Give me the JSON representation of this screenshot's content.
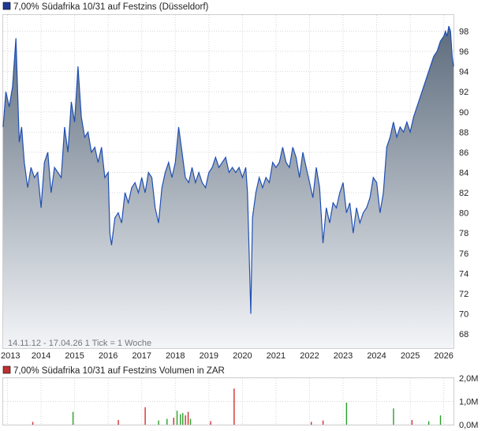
{
  "chart_data": [
    {
      "type": "area",
      "title": "7,00% Südafrika 10/31 auf Festzins (Düsseldorf)",
      "series_color": "#1f4fb4",
      "legend_swatch_color": "#1f3a93",
      "caption": "14.11.12 - 17.04.26   1 Tick = 1 Woche",
      "xlim": [
        2012.87,
        2026.29
      ],
      "ylim": [
        66.6,
        99.6
      ],
      "x_ticks": [
        2013,
        2014,
        2015,
        2016,
        2017,
        2018,
        2019,
        2020,
        2021,
        2022,
        2023,
        2024,
        2025,
        2026
      ],
      "x_tick_labels": [
        "2013",
        "2014",
        "2015",
        "2016",
        "2017",
        "2018",
        "2019",
        "2020",
        "2021",
        "2022",
        "2023",
        "2024",
        "2025",
        "2026"
      ],
      "y_ticks": [
        68,
        70,
        72,
        74,
        76,
        78,
        80,
        82,
        84,
        86,
        88,
        90,
        92,
        94,
        96,
        98
      ],
      "y_tick_labels": [
        "68",
        "70",
        "72",
        "74",
        "76",
        "78",
        "80",
        "82",
        "84",
        "86",
        "88",
        "90",
        "92",
        "94",
        "96",
        "98"
      ],
      "x": [
        2012.87,
        2012.95,
        2013.05,
        2013.15,
        2013.25,
        2013.35,
        2013.42,
        2013.5,
        2013.6,
        2013.7,
        2013.8,
        2013.9,
        2014.0,
        2014.1,
        2014.2,
        2014.3,
        2014.4,
        2014.5,
        2014.6,
        2014.7,
        2014.8,
        2014.9,
        2015.0,
        2015.1,
        2015.2,
        2015.3,
        2015.4,
        2015.5,
        2015.6,
        2015.7,
        2015.8,
        2015.9,
        2016.0,
        2016.05,
        2016.1,
        2016.2,
        2016.3,
        2016.4,
        2016.5,
        2016.6,
        2016.7,
        2016.8,
        2016.9,
        2017.0,
        2017.1,
        2017.2,
        2017.3,
        2017.4,
        2017.5,
        2017.6,
        2017.7,
        2017.8,
        2017.9,
        2018.0,
        2018.1,
        2018.2,
        2018.3,
        2018.4,
        2018.5,
        2018.6,
        2018.7,
        2018.8,
        2018.9,
        2019.0,
        2019.1,
        2019.2,
        2019.3,
        2019.4,
        2019.5,
        2019.6,
        2019.7,
        2019.8,
        2019.9,
        2020.0,
        2020.1,
        2020.15,
        2020.2,
        2020.25,
        2020.3,
        2020.4,
        2020.5,
        2020.6,
        2020.7,
        2020.8,
        2020.9,
        2021.0,
        2021.1,
        2021.2,
        2021.3,
        2021.4,
        2021.5,
        2021.6,
        2021.7,
        2021.8,
        2021.9,
        2022.0,
        2022.1,
        2022.2,
        2022.3,
        2022.4,
        2022.5,
        2022.6,
        2022.7,
        2022.8,
        2022.9,
        2023.0,
        2023.1,
        2023.2,
        2023.3,
        2023.4,
        2023.5,
        2023.6,
        2023.7,
        2023.8,
        2023.9,
        2024.0,
        2024.1,
        2024.2,
        2024.3,
        2024.4,
        2024.5,
        2024.6,
        2024.7,
        2024.8,
        2024.9,
        2025.0,
        2025.1,
        2025.2,
        2025.3,
        2025.4,
        2025.5,
        2025.6,
        2025.7,
        2025.8,
        2025.9,
        2026.0,
        2026.05,
        2026.1,
        2026.15,
        2026.2,
        2026.25,
        2026.29
      ],
      "values": [
        88.5,
        92.0,
        90.5,
        92.5,
        97.3,
        87.0,
        88.5,
        85.0,
        82.5,
        84.5,
        83.5,
        84.0,
        80.5,
        85.0,
        86.0,
        82.0,
        84.5,
        84.0,
        83.5,
        88.5,
        86.0,
        91.0,
        89.0,
        94.5,
        89.5,
        87.5,
        88.0,
        86.0,
        86.5,
        85.0,
        86.5,
        83.5,
        84.0,
        78.0,
        76.8,
        79.5,
        80.0,
        79.0,
        82.0,
        81.0,
        82.5,
        83.0,
        82.0,
        83.5,
        82.0,
        84.0,
        83.5,
        80.5,
        79.0,
        82.5,
        84.0,
        85.0,
        83.5,
        85.0,
        88.5,
        86.0,
        83.5,
        83.0,
        84.5,
        83.0,
        84.0,
        83.0,
        82.5,
        84.0,
        84.5,
        85.5,
        84.5,
        85.0,
        85.5,
        84.0,
        84.5,
        84.0,
        84.5,
        83.5,
        84.5,
        82.0,
        76.0,
        70.0,
        79.5,
        82.0,
        83.5,
        82.5,
        83.5,
        83.0,
        85.0,
        84.5,
        85.0,
        86.5,
        85.0,
        84.5,
        86.5,
        85.5,
        83.5,
        86.0,
        84.5,
        83.0,
        81.5,
        84.5,
        82.5,
        77.0,
        80.5,
        79.0,
        81.0,
        80.5,
        82.0,
        83.0,
        80.0,
        81.0,
        78.0,
        80.5,
        79.0,
        80.0,
        80.5,
        81.5,
        83.5,
        83.0,
        80.0,
        82.0,
        86.5,
        87.5,
        89.0,
        87.5,
        88.5,
        88.0,
        89.0,
        88.0,
        89.5,
        90.5,
        91.5,
        92.5,
        93.5,
        94.5,
        95.5,
        96.0,
        97.0,
        97.5,
        98.0,
        97.5,
        98.5,
        98.0,
        95.5,
        94.5
      ]
    },
    {
      "type": "bar",
      "title": "7,00% Südafrika 10/31 auf Festzins Volumen in ZAR",
      "legend_swatch_color": "#c03030",
      "ylim": [
        0,
        2.0
      ],
      "y_ticks": [
        0,
        1,
        2
      ],
      "y_tick_labels": [
        "0,0M",
        "1,0M",
        "2,0M"
      ],
      "bars": [
        {
          "x": 2013.75,
          "value": 0.12,
          "color": "#d03030"
        },
        {
          "x": 2014.95,
          "value": 0.55,
          "color": "#2aa02a"
        },
        {
          "x": 2016.3,
          "value": 0.2,
          "color": "#d03030"
        },
        {
          "x": 2017.1,
          "value": 0.75,
          "color": "#d03030"
        },
        {
          "x": 2017.5,
          "value": 0.18,
          "color": "#2aa02a"
        },
        {
          "x": 2017.75,
          "value": 0.25,
          "color": "#2aa02a"
        },
        {
          "x": 2017.95,
          "value": 0.3,
          "color": "#d03030"
        },
        {
          "x": 2018.05,
          "value": 0.6,
          "color": "#2aa02a"
        },
        {
          "x": 2018.15,
          "value": 0.45,
          "color": "#2aa02a"
        },
        {
          "x": 2018.22,
          "value": 0.5,
          "color": "#2aa02a"
        },
        {
          "x": 2018.3,
          "value": 0.4,
          "color": "#d03030"
        },
        {
          "x": 2018.38,
          "value": 0.55,
          "color": "#d03030"
        },
        {
          "x": 2018.45,
          "value": 0.25,
          "color": "#2aa02a"
        },
        {
          "x": 2019.05,
          "value": 0.15,
          "color": "#d03030"
        },
        {
          "x": 2019.75,
          "value": 1.55,
          "color": "#d03030"
        },
        {
          "x": 2022.05,
          "value": 0.12,
          "color": "#d03030"
        },
        {
          "x": 2022.4,
          "value": 0.18,
          "color": "#d03030"
        },
        {
          "x": 2023.1,
          "value": 0.95,
          "color": "#2aa02a"
        },
        {
          "x": 2024.5,
          "value": 0.7,
          "color": "#2aa02a"
        },
        {
          "x": 2025.05,
          "value": 0.2,
          "color": "#d03030"
        },
        {
          "x": 2025.55,
          "value": 0.15,
          "color": "#2aa02a"
        },
        {
          "x": 2025.9,
          "value": 0.4,
          "color": "#2aa02a"
        }
      ]
    }
  ]
}
